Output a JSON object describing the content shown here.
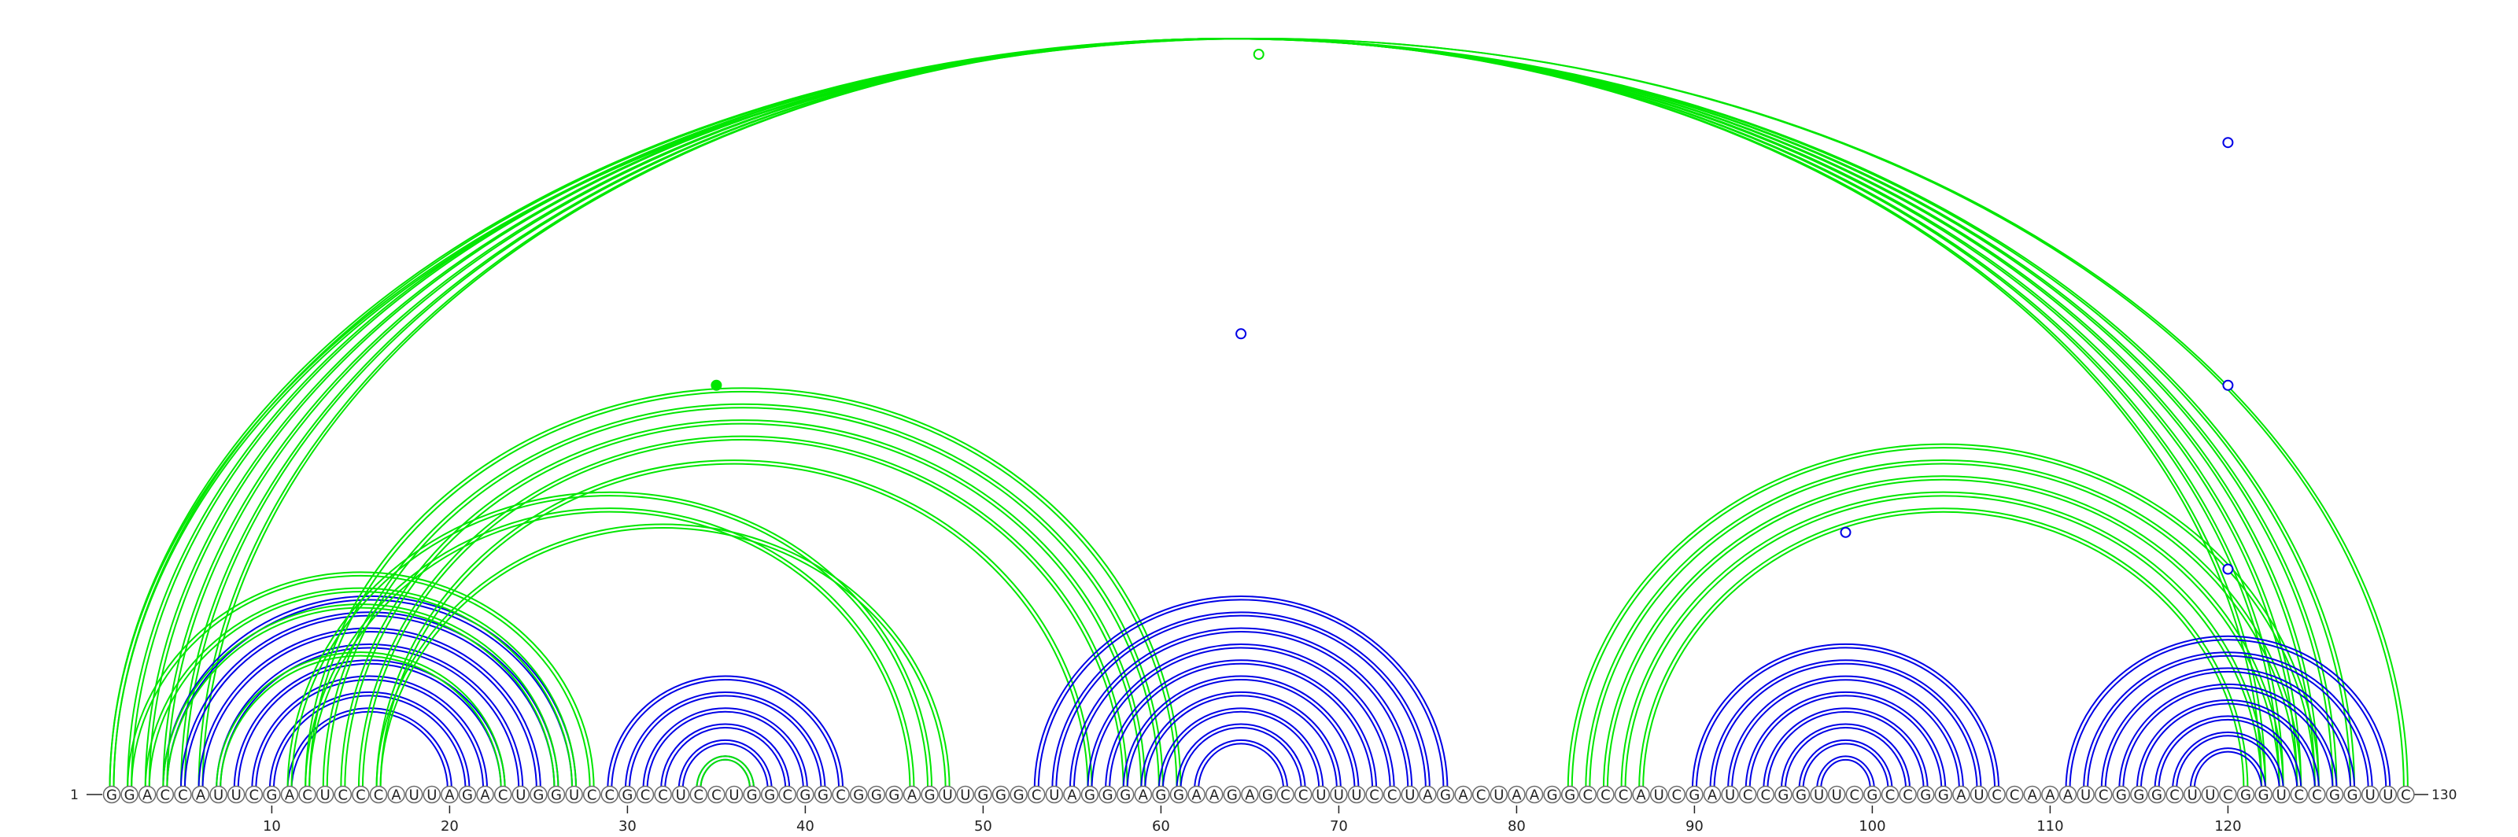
{
  "sequence": "GGACCAUUCGACUCCCAUUAGACUGGUCCGCCUCCUGGCGGCGGGAGUUGGGCUAGGGAGGAAGAGCCUUUCCUAGACUAAGGCCCAUCGAUCCGGUUCGCCGGAUCCAAAUCGGGCUUCGGUCCGGUUC",
  "start_label": "1",
  "end_label": "130",
  "ticks": [
    10,
    20,
    30,
    40,
    50,
    60,
    70,
    80,
    90,
    100,
    110,
    120
  ],
  "colors": {
    "nested": "#0000e6",
    "pseudoknot": "#00e600"
  },
  "arc_groups": [
    {
      "color": "pseudoknot",
      "pairs": [
        [
          1,
          127
        ],
        [
          2,
          126
        ],
        [
          3,
          125
        ],
        [
          4,
          124
        ],
        [
          5,
          123
        ],
        [
          6,
          122
        ]
      ]
    },
    {
      "color": "pseudoknot",
      "pairs": [
        [
          1,
          130
        ]
      ]
    },
    {
      "color": "nested",
      "pairs": [
        [
          4,
          27
        ],
        [
          5,
          26
        ],
        [
          6,
          25
        ],
        [
          7,
          24
        ],
        [
          8,
          23
        ],
        [
          9,
          22
        ],
        [
          10,
          21
        ],
        [
          11,
          20
        ]
      ]
    },
    {
      "color": "pseudoknot",
      "pairs": [
        [
          2,
          28
        ],
        [
          3,
          27
        ],
        [
          4,
          26
        ]
      ]
    },
    {
      "color": "pseudoknot",
      "pairs": [
        [
          7,
          23
        ]
      ]
    },
    {
      "color": "pseudoknot",
      "pairs": [
        [
          12,
          61
        ],
        [
          13,
          60
        ],
        [
          14,
          59
        ],
        [
          15,
          58
        ],
        [
          16,
          56
        ]
      ]
    },
    {
      "color": "pseudoknot",
      "pairs": [
        [
          11,
          47
        ],
        [
          12,
          46
        ]
      ]
    },
    {
      "color": "pseudoknot",
      "pairs": [
        [
          16,
          48
        ]
      ]
    },
    {
      "color": "nested",
      "pairs": [
        [
          29,
          42
        ],
        [
          30,
          41
        ],
        [
          31,
          40
        ],
        [
          32,
          39
        ],
        [
          33,
          38
        ],
        [
          34,
          37
        ]
      ]
    },
    {
      "color": "pseudoknot",
      "pairs": [
        [
          34,
          37
        ]
      ]
    },
    {
      "color": "nested",
      "pairs": [
        [
          53,
          76
        ],
        [
          54,
          75
        ],
        [
          55,
          74
        ],
        [
          56,
          73
        ],
        [
          57,
          72
        ],
        [
          58,
          71
        ],
        [
          59,
          70
        ],
        [
          60,
          69
        ],
        [
          61,
          68
        ],
        [
          62,
          67
        ]
      ]
    },
    {
      "color": "pseudoknot",
      "pairs": [
        [
          83,
          125
        ],
        [
          84,
          124
        ],
        [
          85,
          123
        ],
        [
          86,
          122
        ],
        [
          87,
          121
        ]
      ]
    },
    {
      "color": "nested",
      "pairs": [
        [
          90,
          107
        ],
        [
          91,
          106
        ],
        [
          92,
          105
        ],
        [
          93,
          104
        ],
        [
          94,
          103
        ],
        [
          95,
          102
        ],
        [
          96,
          101
        ],
        [
          97,
          100
        ]
      ]
    },
    {
      "color": "nested",
      "pairs": [
        [
          111,
          129
        ],
        [
          112,
          128
        ],
        [
          113,
          127
        ],
        [
          114,
          126
        ],
        [
          115,
          125
        ],
        [
          116,
          124
        ],
        [
          117,
          123
        ],
        [
          118,
          122
        ]
      ]
    }
  ],
  "markers": [
    {
      "pos": 65.5,
      "level": 1.0,
      "color": "pseudoknot",
      "fill": false
    },
    {
      "pos": 35.0,
      "level": 0.55,
      "color": "pseudoknot",
      "fill": true
    },
    {
      "pos": 64.5,
      "level": 0.62,
      "color": "nested",
      "fill": false
    },
    {
      "pos": 98.5,
      "level": 0.35,
      "color": "nested",
      "fill": false
    },
    {
      "pos": 120.0,
      "level": 0.88,
      "color": "nested",
      "fill": false
    },
    {
      "pos": 120.0,
      "level": 0.55,
      "color": "nested",
      "fill": false
    },
    {
      "pos": 120.0,
      "level": 0.3,
      "color": "nested",
      "fill": false
    }
  ]
}
